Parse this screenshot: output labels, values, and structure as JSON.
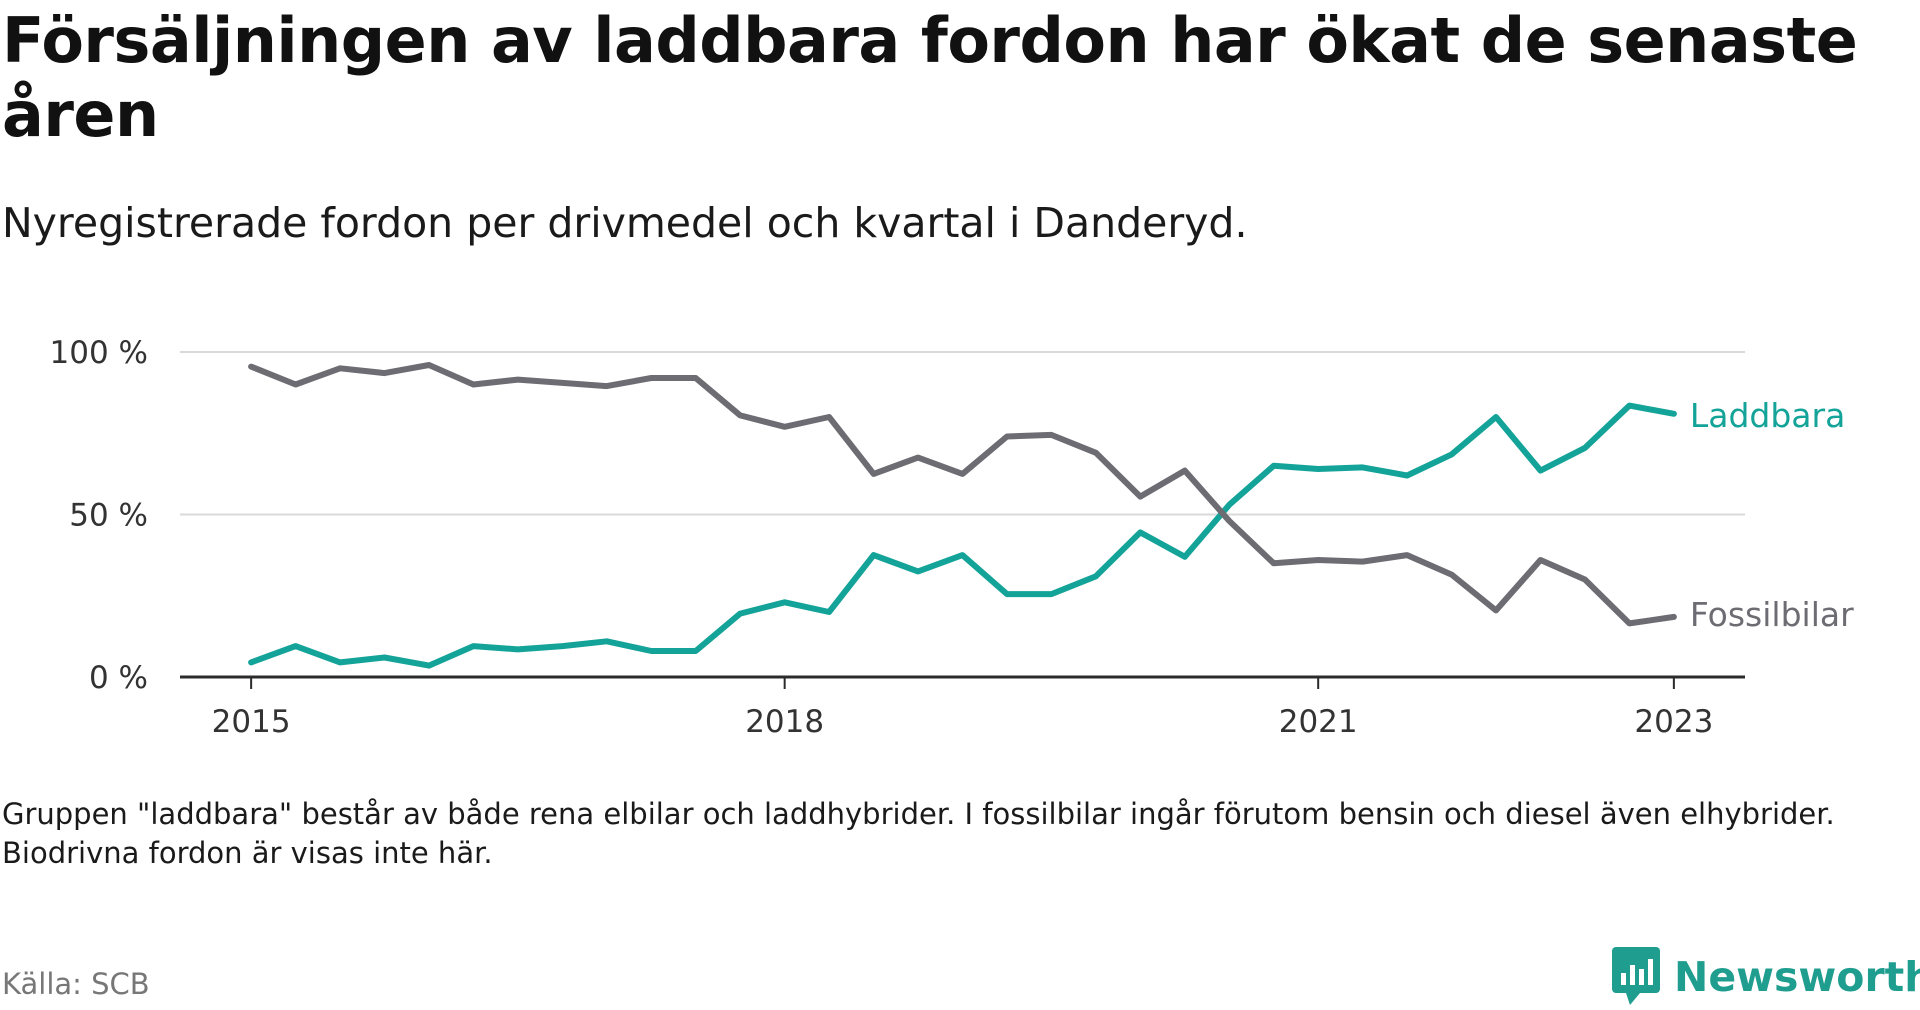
{
  "title": "Försäljningen av laddbara fordon har ökat de senaste åren",
  "subtitle": "Nyregistrerade fordon per drivmedel och kvartal i Danderyd.",
  "note": "Gruppen \"laddbara\" består av både rena elbilar och laddhybrider. I fossilbilar ingår förutom bensin och diesel även elhybrider. Biodrivna fordon är visas inte här.",
  "source": "Källa: SCB",
  "brand": "Newsworthy",
  "colors": {
    "laddbara": "#14a398",
    "fossil": "#6d6c73",
    "grid": "#d9d9d9",
    "axis": "#2b2b2b",
    "brand": "#1f9e8f"
  },
  "chart_data": {
    "type": "line",
    "title": "",
    "xlabel": "",
    "ylabel": "",
    "ylim": [
      0,
      100
    ],
    "yticks": [
      0,
      50,
      100
    ],
    "ytick_labels": [
      "0 %",
      "50 %",
      "100 %"
    ],
    "xticks": [
      2015,
      2018,
      2021,
      2023
    ],
    "xtick_labels": [
      "2015",
      "2018",
      "2021",
      "2023"
    ],
    "x": [
      "2015 Q1",
      "2015 Q2",
      "2015 Q3",
      "2015 Q4",
      "2016 Q1",
      "2016 Q2",
      "2016 Q3",
      "2016 Q4",
      "2017 Q1",
      "2017 Q2",
      "2017 Q3",
      "2017 Q4",
      "2018 Q1",
      "2018 Q2",
      "2018 Q3",
      "2018 Q4",
      "2019 Q1",
      "2019 Q2",
      "2019 Q3",
      "2019 Q4",
      "2020 Q1",
      "2020 Q2",
      "2020 Q3",
      "2020 Q4",
      "2021 Q1",
      "2021 Q2",
      "2021 Q3",
      "2021 Q4",
      "2022 Q1",
      "2022 Q2",
      "2022 Q3",
      "2022 Q4",
      "2023 Q1"
    ],
    "x_numeric": [
      2015,
      2015.25,
      2015.5,
      2015.75,
      2016,
      2016.25,
      2016.5,
      2016.75,
      2017,
      2017.25,
      2017.5,
      2017.75,
      2018,
      2018.25,
      2018.5,
      2018.75,
      2019,
      2019.25,
      2019.5,
      2019.75,
      2020,
      2020.25,
      2020.5,
      2020.75,
      2021,
      2021.25,
      2021.5,
      2021.75,
      2022,
      2022.25,
      2022.5,
      2022.75,
      2023
    ],
    "xlim": [
      2014.6,
      2023.4
    ],
    "series": [
      {
        "name": "Laddbara",
        "values": [
          4.5,
          9.5,
          4.5,
          6,
          3.5,
          9.5,
          8.5,
          9.5,
          11,
          8,
          8,
          19.5,
          23,
          20,
          37.5,
          32.5,
          37.5,
          25.5,
          25.5,
          31,
          44.5,
          37,
          53,
          65,
          64,
          64.5,
          62,
          68.5,
          80,
          63.5,
          70.5,
          83.5,
          81
        ]
      },
      {
        "name": "Fossilbilar",
        "values": [
          95.5,
          90,
          95,
          93.5,
          96,
          90,
          91.5,
          90.5,
          89.5,
          92,
          92,
          80.5,
          77,
          80,
          62.5,
          67.5,
          62.5,
          74,
          74.5,
          69,
          55.5,
          63.5,
          48,
          35,
          36,
          35.5,
          37.5,
          31.5,
          20.5,
          36,
          30,
          16.5,
          18.5
        ]
      }
    ]
  }
}
